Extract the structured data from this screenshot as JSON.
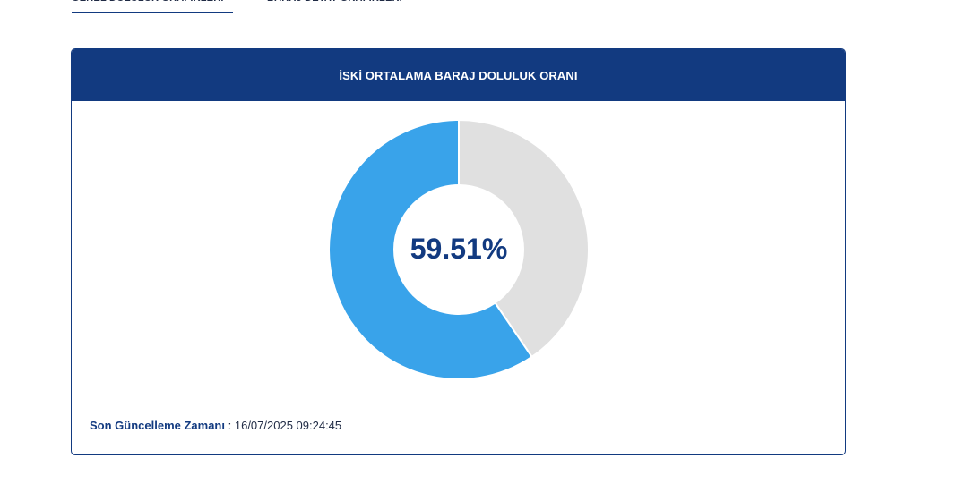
{
  "tabs": [
    {
      "label": "GENEL DOLULUK GRAFİKLERİ",
      "active": true
    },
    {
      "label": "BARAJ DETAY GRAFİKLERİ",
      "active": false
    }
  ],
  "card": {
    "title": "İSKİ ORTALAMA BARAJ DOLULUK ORANI",
    "last_update_label": "Son Güncelleme Zamanı",
    "last_update_value": "16/07/2025 09:24:45"
  },
  "chart_data": {
    "type": "pie",
    "center_label": "59.51%",
    "slices": [
      {
        "value": 59.51,
        "color": "#39a3ea"
      },
      {
        "value": 40.49,
        "color": "#e0e0e0"
      }
    ]
  },
  "colors": {
    "primary": "#123a80",
    "filled": "#39a3ea",
    "empty": "#e0e0e0"
  }
}
